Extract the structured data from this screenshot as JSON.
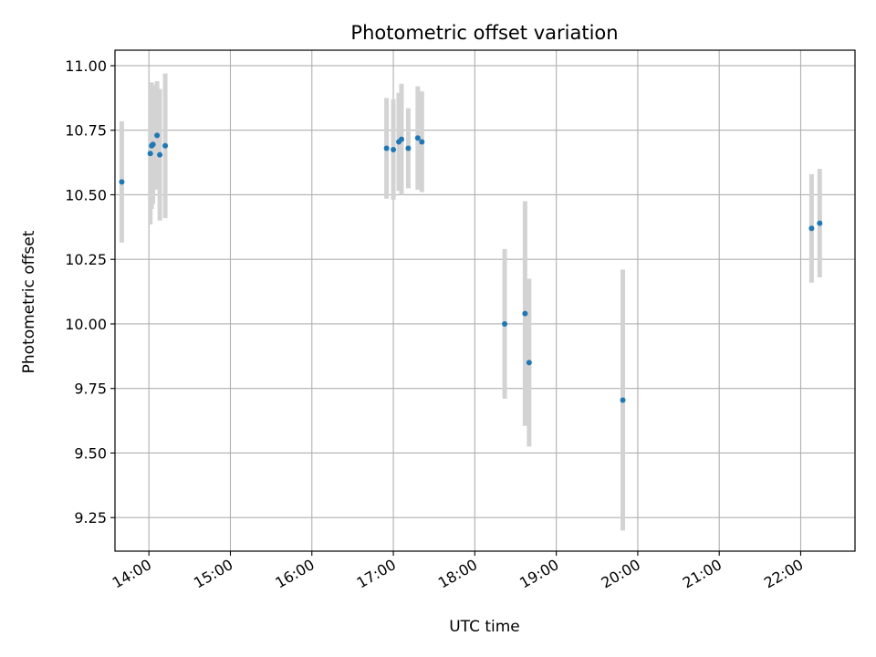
{
  "chart_data": {
    "type": "scatter",
    "title": "Photometric offset variation",
    "xlabel": "UTC time",
    "ylabel": "Photometric offset",
    "x_tick_labels": [
      "14:00",
      "15:00",
      "16:00",
      "17:00",
      "18:00",
      "19:00",
      "20:00",
      "21:00",
      "22:00"
    ],
    "y_tick_labels": [
      "9.25",
      "9.50",
      "9.75",
      "10.00",
      "10.25",
      "10.50",
      "10.75",
      "11.00"
    ],
    "y_ticks": [
      9.25,
      9.5,
      9.75,
      10.0,
      10.25,
      10.5,
      10.75,
      11.0
    ],
    "xlim": [
      "13:35",
      "22:40"
    ],
    "ylim": [
      9.12,
      11.06
    ],
    "grid": true,
    "legend": "none",
    "colors": {
      "marker": "#1f77b4",
      "errorbar": "#d3d3d3",
      "grid": "#b0b0b0"
    },
    "points": [
      {
        "x": "13:40",
        "y": 10.55,
        "err": 0.235
      },
      {
        "x": "14:01",
        "y": 10.66,
        "err": 0.275
      },
      {
        "x": "14:02",
        "y": 10.69,
        "err": 0.245
      },
      {
        "x": "14:03",
        "y": 10.695,
        "err": 0.23
      },
      {
        "x": "14:06",
        "y": 10.73,
        "err": 0.21
      },
      {
        "x": "14:08",
        "y": 10.655,
        "err": 0.255
      },
      {
        "x": "14:12",
        "y": 10.69,
        "err": 0.28
      },
      {
        "x": "16:55",
        "y": 10.68,
        "err": 0.195
      },
      {
        "x": "17:00",
        "y": 10.675,
        "err": 0.195
      },
      {
        "x": "17:04",
        "y": 10.705,
        "err": 0.19
      },
      {
        "x": "17:06",
        "y": 10.715,
        "err": 0.215
      },
      {
        "x": "17:11",
        "y": 10.68,
        "err": 0.155
      },
      {
        "x": "17:18",
        "y": 10.72,
        "err": 0.2
      },
      {
        "x": "17:21",
        "y": 10.705,
        "err": 0.195
      },
      {
        "x": "18:22",
        "y": 10.0,
        "err": 0.29
      },
      {
        "x": "18:37",
        "y": 10.04,
        "err": 0.435
      },
      {
        "x": "18:40",
        "y": 9.85,
        "err": 0.325
      },
      {
        "x": "19:49",
        "y": 9.705,
        "err": 0.505
      },
      {
        "x": "22:08",
        "y": 10.37,
        "err": 0.21
      },
      {
        "x": "22:14",
        "y": 10.39,
        "err": 0.21
      }
    ]
  }
}
